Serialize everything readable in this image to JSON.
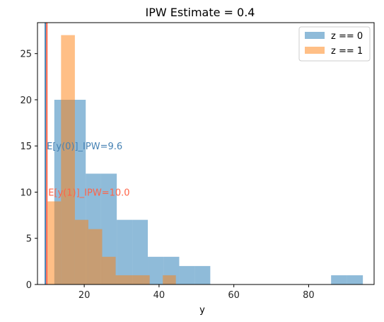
{
  "chart_data": {
    "type": "histogram",
    "title": "IPW Estimate = 0.4",
    "xlabel": "y",
    "ylabel": "",
    "xlim": [
      7.5,
      97.5
    ],
    "ylim": [
      0,
      28.35
    ],
    "xticks": [
      20,
      40,
      60,
      80
    ],
    "yticks": [
      0,
      5,
      10,
      15,
      20,
      25
    ],
    "grid": false,
    "legend": {
      "position": "top-right",
      "entries": [
        "z == 0",
        "z == 1"
      ]
    },
    "series": [
      {
        "name": "z == 0",
        "color": "#1f77b4",
        "alpha": 0.5,
        "bins": [
          {
            "x0": 12.0,
            "x1": 16.2,
            "count": 20
          },
          {
            "x0": 16.2,
            "x1": 20.4,
            "count": 20
          },
          {
            "x0": 20.4,
            "x1": 24.5,
            "count": 12
          },
          {
            "x0": 24.5,
            "x1": 28.7,
            "count": 12
          },
          {
            "x0": 28.7,
            "x1": 32.9,
            "count": 7
          },
          {
            "x0": 32.9,
            "x1": 37.0,
            "count": 7
          },
          {
            "x0": 37.0,
            "x1": 41.2,
            "count": 3
          },
          {
            "x0": 41.2,
            "x1": 45.4,
            "count": 3
          },
          {
            "x0": 45.4,
            "x1": 49.6,
            "count": 2
          },
          {
            "x0": 49.6,
            "x1": 53.7,
            "count": 2
          },
          {
            "x0": 53.7,
            "x1": 86.0,
            "count": 0
          },
          {
            "x0": 86.0,
            "x1": 90.2,
            "count": 1
          },
          {
            "x0": 90.2,
            "x1": 94.5,
            "count": 1
          }
        ]
      },
      {
        "name": "z == 1",
        "color": "#ff7f0e",
        "alpha": 0.5,
        "bins": [
          {
            "x0": 10.2,
            "x1": 13.8,
            "count": 9
          },
          {
            "x0": 13.8,
            "x1": 17.5,
            "count": 27
          },
          {
            "x0": 17.5,
            "x1": 21.1,
            "count": 7
          },
          {
            "x0": 21.1,
            "x1": 24.8,
            "count": 6
          },
          {
            "x0": 24.8,
            "x1": 28.4,
            "count": 3
          },
          {
            "x0": 28.4,
            "x1": 32.0,
            "count": 1
          },
          {
            "x0": 32.0,
            "x1": 35.7,
            "count": 1
          },
          {
            "x0": 35.7,
            "x1": 37.5,
            "count": 1
          },
          {
            "x0": 37.5,
            "x1": 41.0,
            "count": 0
          },
          {
            "x0": 41.0,
            "x1": 44.5,
            "count": 1
          }
        ]
      }
    ],
    "vlines": [
      {
        "x": 9.6,
        "color": "#4682b4"
      },
      {
        "x": 10.0,
        "color": "#ff6347"
      }
    ],
    "annotations": [
      {
        "text": "E[y(0)]_IPW=9.6",
        "x": 9.6,
        "y": 15,
        "color": "#4682b4"
      },
      {
        "text": "E[y(1)]_IPW=10.0",
        "x": 10.0,
        "y": 10,
        "color": "#ff6347"
      }
    ]
  }
}
